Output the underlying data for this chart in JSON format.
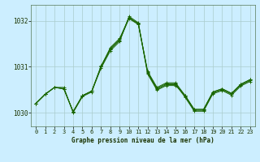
{
  "title": "Graphe pression niveau de la mer (hPa)",
  "background_color": "#cceeff",
  "grid_color": "#aacccc",
  "line_color": "#1a6600",
  "ylim": [
    1029.7,
    1032.35
  ],
  "yticks": [
    1030,
    1031,
    1032
  ],
  "xlim": [
    -0.5,
    23.5
  ],
  "xticks": [
    0,
    1,
    2,
    3,
    4,
    5,
    6,
    7,
    8,
    9,
    10,
    11,
    12,
    13,
    14,
    15,
    16,
    17,
    18,
    19,
    20,
    21,
    22,
    23
  ],
  "series": [
    [
      1030.2,
      1030.4,
      1030.55,
      1030.55,
      1030.0,
      1030.35,
      1030.45,
      1031.0,
      1031.38,
      1031.58,
      1032.05,
      1031.92,
      1030.9,
      1030.55,
      1030.65,
      1030.65,
      1030.38,
      1030.07,
      1030.07,
      1030.45,
      1030.52,
      1030.42,
      1030.62,
      1030.72
    ],
    [
      1030.2,
      1030.4,
      1030.55,
      1030.52,
      1030.02,
      1030.37,
      1030.47,
      1031.02,
      1031.4,
      1031.6,
      1032.07,
      1031.94,
      1030.88,
      1030.53,
      1030.63,
      1030.63,
      1030.36,
      1030.05,
      1030.05,
      1030.43,
      1030.5,
      1030.4,
      1030.6,
      1030.7
    ],
    [
      1030.2,
      1030.4,
      1030.55,
      1030.52,
      1030.02,
      1030.37,
      1030.47,
      1030.97,
      1031.35,
      1031.55,
      1032.1,
      1031.96,
      1030.86,
      1030.51,
      1030.61,
      1030.61,
      1030.34,
      1030.03,
      1030.03,
      1030.41,
      1030.48,
      1030.38,
      1030.58,
      1030.68
    ],
    [
      1030.2,
      1030.4,
      1030.55,
      1030.52,
      1030.02,
      1030.37,
      1030.47,
      1031.0,
      1031.42,
      1031.62,
      1032.07,
      1031.94,
      1030.84,
      1030.49,
      1030.59,
      1030.59,
      1030.38,
      1030.07,
      1030.07,
      1030.45,
      1030.52,
      1030.42,
      1030.62,
      1030.72
    ]
  ]
}
